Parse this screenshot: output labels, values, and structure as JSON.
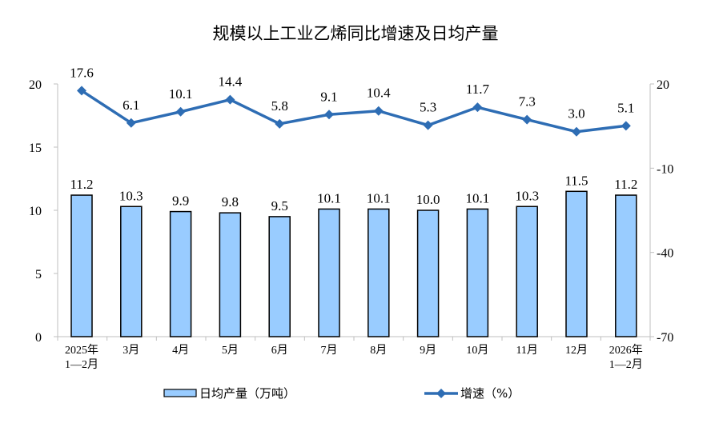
{
  "chart_data": {
    "type": "bar+line",
    "title": "规模以上工业乙烯同比增速及日均产量",
    "categories": [
      [
        "2025年",
        "1—2月"
      ],
      [
        "3月"
      ],
      [
        "4月"
      ],
      [
        "5月"
      ],
      [
        "6月"
      ],
      [
        "7月"
      ],
      [
        "8月"
      ],
      [
        "9月"
      ],
      [
        "10月"
      ],
      [
        "11月"
      ],
      [
        "12月"
      ],
      [
        "2026年",
        "1—2月"
      ]
    ],
    "series": [
      {
        "name": "日均产量（万吨）",
        "type": "bar",
        "axis": "left",
        "color": "#99CCFF",
        "border": "#000000",
        "values": [
          11.2,
          10.3,
          9.9,
          9.8,
          9.5,
          10.1,
          10.1,
          10.0,
          10.1,
          10.3,
          11.5,
          11.2
        ]
      },
      {
        "name": "增速（%）",
        "type": "line",
        "axis": "right",
        "color": "#2E6DB4",
        "marker": "diamond",
        "values": [
          17.6,
          6.1,
          10.1,
          14.4,
          5.8,
          9.1,
          10.4,
          5.3,
          11.7,
          7.3,
          3.0,
          5.1
        ]
      }
    ],
    "left_axis": {
      "range": [
        0,
        20
      ],
      "ticks": [
        0,
        5,
        10,
        15,
        20
      ]
    },
    "right_axis": {
      "range": [
        -70,
        20
      ],
      "ticks": [
        -70,
        -40,
        -10,
        20
      ]
    },
    "grid": false,
    "legend": "bottom"
  }
}
